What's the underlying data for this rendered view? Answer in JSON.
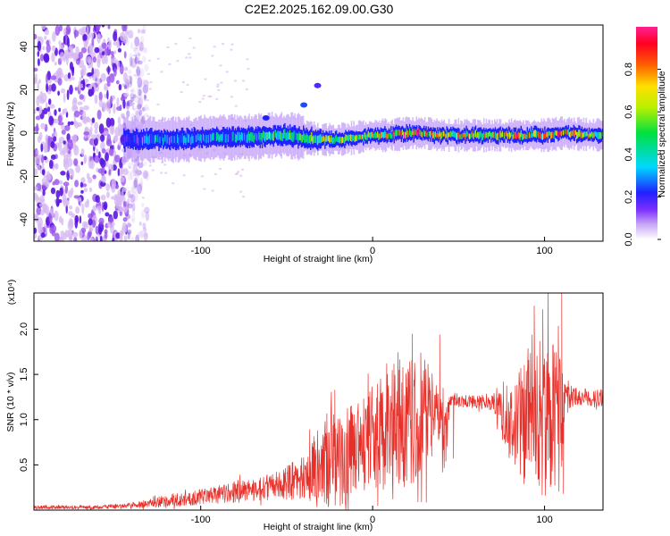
{
  "title": "C2E2.2025.162.09.00.G30",
  "colors": {
    "snr_line": "#e8302a",
    "dot_faint": "#d6b8f2",
    "dot_mid": "#9a55ee",
    "dot_strong": "#5a16e0"
  },
  "chart_data": [
    {
      "type": "heatmap",
      "title": "C2E2.2025.162.09.00.G30",
      "xlabel": "Height of straight line (km)",
      "ylabel": "Frequency (Hz)",
      "xlim": [
        -197,
        134
      ],
      "ylim": [
        -50,
        50
      ],
      "xticks": [
        -100,
        0,
        100
      ],
      "xtick_labels": [
        "-100",
        "0",
        "100"
      ],
      "yticks": [
        -40,
        -20,
        0,
        20,
        40
      ],
      "ytick_labels": [
        "-40",
        "-20",
        "0",
        "20",
        "40"
      ],
      "grid": false,
      "colorbar": {
        "label": "Normalized spectral amplitude",
        "range": [
          0,
          1
        ],
        "ticks": [
          0,
          0.2,
          0.4,
          0.6,
          0.8
        ],
        "tick_labels": [
          "0.0",
          "0.2",
          "0.4",
          "0.6",
          "0.8"
        ],
        "colormap": "rainbow",
        "position": "right"
      },
      "noise_region_x": [
        -197,
        -143
      ],
      "ridge": {
        "x": [
          -145,
          -130,
          -110,
          -90,
          -70,
          -60,
          -50,
          -40,
          -30,
          -20,
          -10,
          0,
          10,
          20,
          25,
          30,
          40,
          60,
          80,
          100,
          110,
          134
        ],
        "y": [
          -3,
          -3,
          -3,
          -2,
          -2,
          -1,
          -1,
          -2,
          -3,
          -3,
          -2,
          -1,
          -1,
          0,
          0,
          0,
          -1,
          -1,
          -1,
          -1,
          0,
          -1
        ],
        "amp": [
          0.2,
          0.35,
          0.35,
          0.4,
          0.45,
          0.55,
          0.5,
          0.55,
          0.6,
          0.65,
          0.7,
          0.75,
          0.8,
          0.9,
          0.95,
          0.85,
          0.75,
          0.7,
          0.8,
          0.75,
          0.85,
          0.6
        ]
      },
      "blobs": [
        {
          "x": -40,
          "y": 13,
          "amp": 0.15
        },
        {
          "x": -32,
          "y": 22,
          "amp": 0.08
        },
        {
          "x": -62,
          "y": 7,
          "amp": 0.12
        }
      ]
    },
    {
      "type": "line",
      "xlabel": "Height of straight line (km)",
      "ylabel": "SNR (10 * v/v)",
      "y_multiplier": "(x10⁴)",
      "xlim": [
        -197,
        134
      ],
      "ylim": [
        0,
        24000
      ],
      "xticks": [
        -100,
        0,
        100
      ],
      "xtick_labels": [
        "-100",
        "0",
        "100"
      ],
      "yticks": [
        5000,
        10000,
        15000,
        20000
      ],
      "ytick_labels": [
        "0.5",
        "1.0",
        "1.5",
        "2.0"
      ],
      "grid": false,
      "series": [
        {
          "x": [
            -197,
            -160,
            -140,
            -120,
            -100,
            -80,
            -60,
            -40,
            -30,
            -20,
            -10,
            0,
            10,
            20,
            30,
            38,
            42,
            45,
            50,
            60,
            70,
            80,
            90,
            100,
            110,
            112,
            120,
            134
          ],
          "mid": [
            300,
            300,
            500,
            1000,
            1500,
            2000,
            2500,
            3500,
            5000,
            6000,
            6500,
            8000,
            9000,
            9500,
            10000,
            11000,
            7000,
            12200,
            12000,
            12000,
            12000,
            9000,
            10000,
            10000,
            10000,
            12500,
            12500,
            12400
          ],
          "amp": [
            200,
            200,
            300,
            700,
            900,
            1200,
            1500,
            2500,
            5000,
            6000,
            5000,
            5500,
            7000,
            8000,
            7000,
            3000,
            4000,
            600,
            700,
            800,
            1000,
            4000,
            8000,
            9000,
            8000,
            1500,
            1000,
            1000
          ],
          "spikes": [
            {
              "x": -22,
              "y": 13300
            },
            {
              "x": 23,
              "y": 19500
            },
            {
              "x": 28,
              "y": 17400
            },
            {
              "x": 39,
              "y": 19400
            },
            {
              "x": 49,
              "y": 12900
            },
            {
              "x": 76,
              "y": 14200
            },
            {
              "x": 94,
              "y": 22600
            },
            {
              "x": 99,
              "y": 22200
            },
            {
              "x": 102,
              "y": 24000
            },
            {
              "x": 110,
              "y": 24000
            },
            {
              "x": 111,
              "y": 1800
            },
            {
              "x": 47,
              "y": 5700
            },
            {
              "x": 97,
              "y": 2700
            }
          ]
        }
      ]
    }
  ]
}
